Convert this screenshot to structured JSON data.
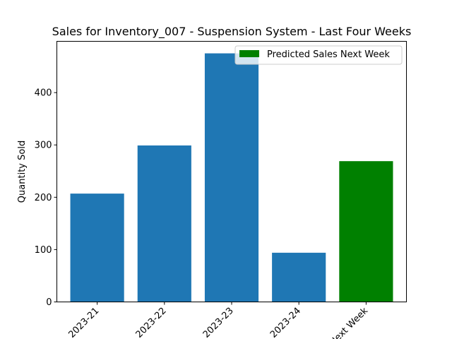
{
  "chart_data": {
    "type": "bar",
    "title": "Sales for Inventory_007 - Suspension System - Last Four Weeks",
    "xlabel": "",
    "ylabel": "Quantity Sold",
    "categories": [
      "2023-21",
      "2023-22",
      "2023-23",
      "2023-24",
      "Next Week"
    ],
    "values": [
      207,
      299,
      475,
      94,
      269
    ],
    "bar_colors": [
      "#1f77b4",
      "#1f77b4",
      "#1f77b4",
      "#1f77b4",
      "#008000"
    ],
    "ylim": [
      0,
      498
    ],
    "yticks": [
      0,
      100,
      200,
      300,
      400
    ],
    "grid": false,
    "legend": {
      "position": "top-right",
      "entries": [
        {
          "label": "Predicted Sales Next Week",
          "color": "#008000"
        }
      ]
    }
  }
}
